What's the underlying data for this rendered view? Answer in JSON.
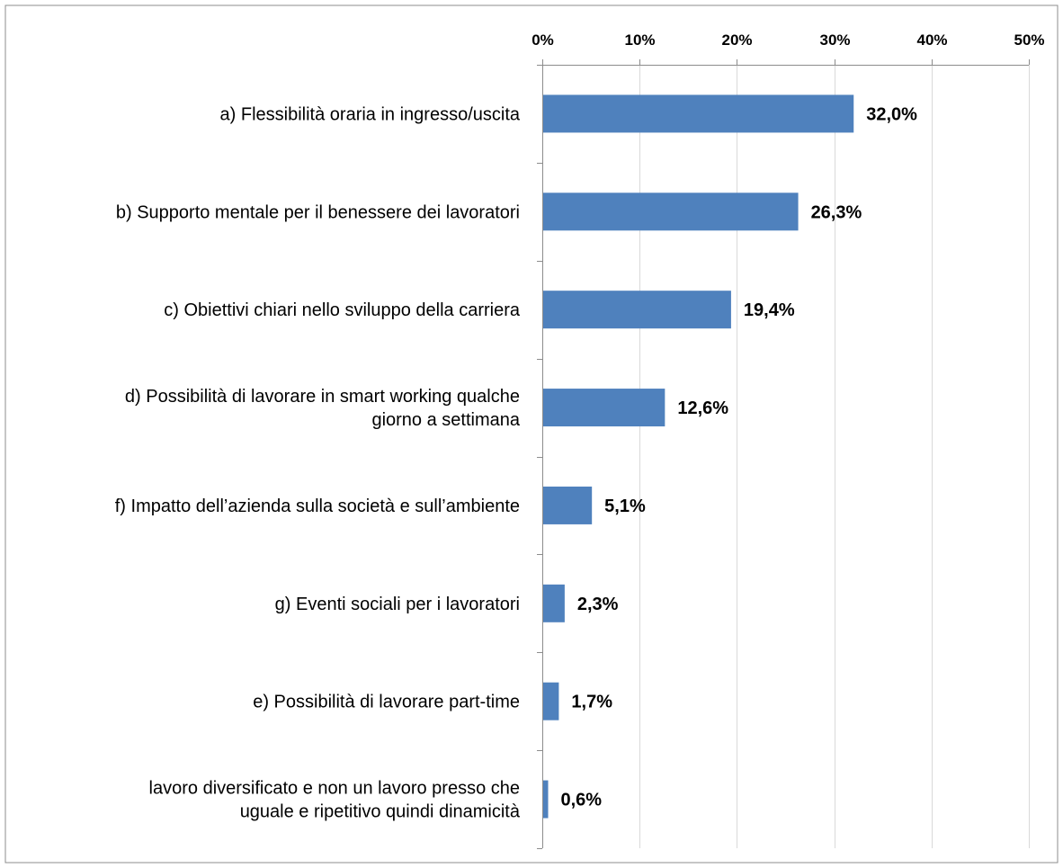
{
  "chart_data": {
    "type": "bar",
    "orientation": "horizontal",
    "categories": [
      [
        "a) Flessibilità oraria in ingresso/uscita"
      ],
      [
        "b) Supporto mentale per il benessere dei lavoratori"
      ],
      [
        "c) Obiettivi chiari nello sviluppo della carriera"
      ],
      [
        "d) Possibilità di lavorare in smart working qualche",
        "giorno a settimana"
      ],
      [
        "f) Impatto dell’azienda sulla società e sull’ambiente"
      ],
      [
        "g) Eventi sociali per i lavoratori"
      ],
      [
        "e) Possibilità di lavorare part-time"
      ],
      [
        "lavoro diversificato e non un lavoro presso che",
        "uguale e ripetitivo quindi dinamicità"
      ]
    ],
    "values": [
      32.0,
      26.3,
      19.4,
      12.6,
      5.1,
      2.3,
      1.7,
      0.6
    ],
    "value_labels": [
      "32,0%",
      "26,3%",
      "19,4%",
      "12,6%",
      "5,1%",
      "2,3%",
      "1,7%",
      "0,6%"
    ],
    "x_ticks": [
      0,
      10,
      20,
      30,
      40,
      50
    ],
    "x_tick_labels": [
      "0%",
      "10%",
      "20%",
      "30%",
      "40%",
      "50%"
    ],
    "xlim": [
      0,
      50
    ],
    "axis_position": "top",
    "grid": true,
    "legend": "none",
    "title": "",
    "xlabel": "",
    "ylabel": "",
    "colors": {
      "bar": "#4f81bd",
      "grid": "#d9d9d9",
      "axis": "#8c8c8c",
      "border": "#8c8c8c"
    }
  }
}
